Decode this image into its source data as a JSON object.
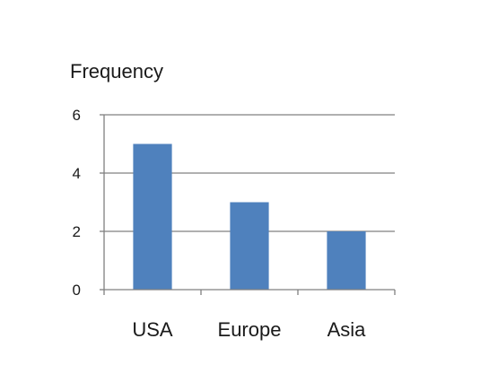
{
  "chart_data": {
    "type": "bar",
    "ylabel": "Frequency",
    "xlabel": "",
    "categories": [
      "USA",
      "Europe",
      "Asia"
    ],
    "values": [
      5,
      3,
      2
    ],
    "ylim": [
      0,
      6
    ],
    "yticks": [
      "0",
      "2",
      "4",
      "6"
    ],
    "grid": true,
    "legend": "none",
    "bar_color": "#4f81bd",
    "grid_color": "#808080",
    "axis_color": "#808080"
  }
}
